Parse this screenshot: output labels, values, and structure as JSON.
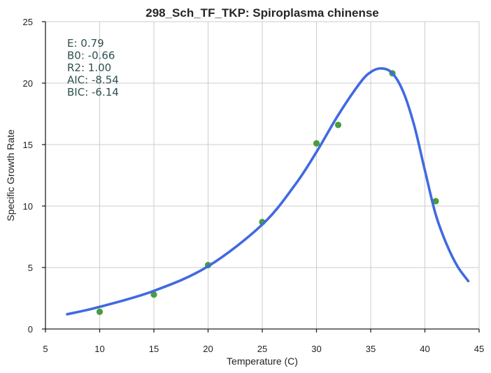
{
  "chart_data": {
    "type": "scatter",
    "title": "298_Sch_TF_TKP: Spiroplasma chinense",
    "xlabel": "Temperature (C)",
    "ylabel": "Specific Growth Rate",
    "xlim": [
      5,
      45
    ],
    "ylim": [
      0,
      25
    ],
    "xticks": [
      "5",
      "10",
      "15",
      "20",
      "25",
      "30",
      "35",
      "40",
      "45"
    ],
    "yticks": [
      "0",
      "5",
      "10",
      "15",
      "20",
      "25"
    ],
    "grid": true,
    "annotations": [
      "E:  0.79",
      "B0:  -0.66",
      "R2:  1.00",
      "AIC: -8.54",
      "BIC: -6.14"
    ],
    "series": [
      {
        "kind": "points",
        "color": "#4a9c3f",
        "x": [
          10,
          15,
          20,
          25,
          30,
          32,
          37,
          41
        ],
        "y": [
          1.4,
          2.8,
          5.2,
          8.7,
          15.1,
          16.6,
          20.8,
          10.4
        ]
      },
      {
        "kind": "line",
        "color": "#4169e1",
        "x": [
          7,
          10,
          15,
          20,
          25,
          28,
          30,
          32,
          34,
          35,
          36,
          37,
          38,
          39,
          40,
          41,
          42,
          43,
          44
        ],
        "y": [
          1.2,
          1.8,
          3.1,
          5.1,
          8.5,
          11.7,
          14.4,
          17.4,
          20.0,
          20.9,
          21.2,
          20.8,
          19.3,
          16.6,
          12.9,
          9.3,
          6.9,
          5.1,
          3.9
        ]
      }
    ]
  }
}
